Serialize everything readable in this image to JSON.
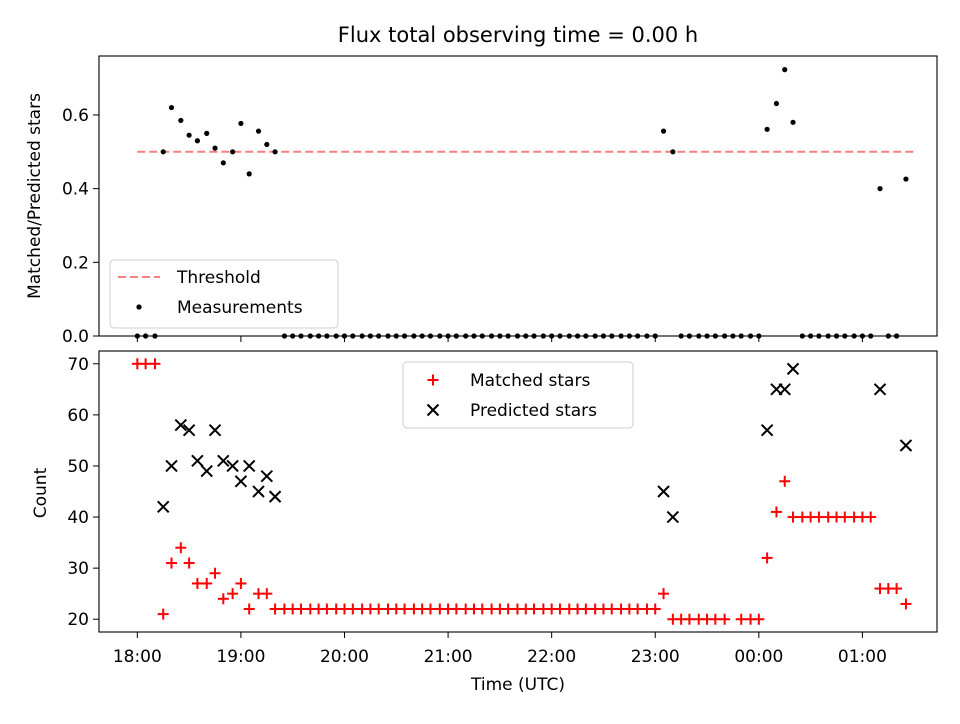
{
  "figure": {
    "title": "Flux total observing time = 0.00 h"
  },
  "chart_data": [
    {
      "type": "scatter",
      "panel": "top",
      "ylabel": "Matched/Predicted stars",
      "ylim": [
        0,
        0.76
      ],
      "yticks": [
        0.0,
        0.2,
        0.4,
        0.6
      ],
      "ytick_labels": [
        "0.0",
        "0.2",
        "0.4",
        "0.6"
      ],
      "threshold": {
        "name": "Threshold",
        "value": 0.5,
        "x_start": 0.0,
        "x_end": 7.5,
        "color": "#f77f7f"
      },
      "legend": {
        "placement": "lower-left",
        "entries": [
          "Threshold",
          "Measurements"
        ]
      },
      "series": [
        {
          "name": "Measurements",
          "color": "#000000",
          "points": [
            [
              0.25,
              0.5
            ],
            [
              0.33,
              0.62
            ],
            [
              0.42,
              0.585
            ],
            [
              0.5,
              0.545
            ],
            [
              0.58,
              0.53
            ],
            [
              0.67,
              0.55
            ],
            [
              0.75,
              0.51
            ],
            [
              0.83,
              0.47
            ],
            [
              0.92,
              0.5
            ],
            [
              1.0,
              0.577
            ],
            [
              1.08,
              0.44
            ],
            [
              1.17,
              0.556
            ],
            [
              1.25,
              0.52
            ],
            [
              1.33,
              0.5
            ],
            [
              5.08,
              0.556
            ],
            [
              5.17,
              0.5
            ],
            [
              6.08,
              0.561
            ],
            [
              6.17,
              0.631
            ],
            [
              6.25,
              0.723
            ],
            [
              6.33,
              0.58
            ],
            [
              7.17,
              0.4
            ],
            [
              7.42,
              0.426
            ],
            [
              0.0,
              0
            ],
            [
              0.08,
              0
            ],
            [
              0.17,
              0
            ],
            [
              1.42,
              0
            ],
            [
              1.5,
              0
            ],
            [
              1.58,
              0
            ],
            [
              1.67,
              0
            ],
            [
              1.75,
              0
            ],
            [
              1.83,
              0
            ],
            [
              1.92,
              0
            ],
            [
              2.0,
              0
            ],
            [
              2.08,
              0
            ],
            [
              2.17,
              0
            ],
            [
              2.25,
              0
            ],
            [
              2.33,
              0
            ],
            [
              2.42,
              0
            ],
            [
              2.5,
              0
            ],
            [
              2.58,
              0
            ],
            [
              2.67,
              0
            ],
            [
              2.75,
              0
            ],
            [
              2.83,
              0
            ],
            [
              2.92,
              0
            ],
            [
              3.0,
              0
            ],
            [
              3.08,
              0
            ],
            [
              3.17,
              0
            ],
            [
              3.25,
              0
            ],
            [
              3.33,
              0
            ],
            [
              3.42,
              0
            ],
            [
              3.5,
              0
            ],
            [
              3.58,
              0
            ],
            [
              3.67,
              0
            ],
            [
              3.75,
              0
            ],
            [
              3.83,
              0
            ],
            [
              3.92,
              0
            ],
            [
              4.0,
              0
            ],
            [
              4.08,
              0
            ],
            [
              4.17,
              0
            ],
            [
              4.25,
              0
            ],
            [
              4.33,
              0
            ],
            [
              4.42,
              0
            ],
            [
              4.5,
              0
            ],
            [
              4.58,
              0
            ],
            [
              4.67,
              0
            ],
            [
              4.75,
              0
            ],
            [
              4.83,
              0
            ],
            [
              4.92,
              0
            ],
            [
              5.0,
              0
            ],
            [
              5.25,
              0
            ],
            [
              5.33,
              0
            ],
            [
              5.42,
              0
            ],
            [
              5.5,
              0
            ],
            [
              5.58,
              0
            ],
            [
              5.67,
              0
            ],
            [
              5.75,
              0
            ],
            [
              5.83,
              0
            ],
            [
              5.92,
              0
            ],
            [
              6.0,
              0
            ],
            [
              6.42,
              0
            ],
            [
              6.5,
              0
            ],
            [
              6.58,
              0
            ],
            [
              6.67,
              0
            ],
            [
              6.75,
              0
            ],
            [
              6.83,
              0
            ],
            [
              6.92,
              0
            ],
            [
              7.0,
              0
            ],
            [
              7.08,
              0
            ],
            [
              7.25,
              0
            ],
            [
              7.33,
              0
            ]
          ]
        }
      ]
    },
    {
      "type": "scatter",
      "panel": "bottom",
      "xlabel": "Time (UTC)",
      "ylabel": "Count",
      "ylim": [
        17.5,
        72.5
      ],
      "yticks": [
        20,
        30,
        40,
        50,
        60,
        70
      ],
      "ytick_labels": [
        "20",
        "30",
        "40",
        "50",
        "60",
        "70"
      ],
      "xlim": [
        -0.37,
        7.72
      ],
      "xticks": [
        0,
        1,
        2,
        3,
        4,
        5,
        6,
        7
      ],
      "xtick_labels": [
        "18:00",
        "19:00",
        "20:00",
        "21:00",
        "22:00",
        "23:00",
        "00:00",
        "01:00"
      ],
      "legend": {
        "placement": "upper-center",
        "entries": [
          "Matched stars",
          "Predicted stars"
        ]
      },
      "series": [
        {
          "name": "Matched stars",
          "marker": "plus",
          "color": "#ff0000",
          "points": [
            [
              0.0,
              70
            ],
            [
              0.08,
              70
            ],
            [
              0.17,
              70
            ],
            [
              0.25,
              21
            ],
            [
              0.33,
              31
            ],
            [
              0.42,
              34
            ],
            [
              0.5,
              31
            ],
            [
              0.58,
              27
            ],
            [
              0.67,
              27
            ],
            [
              0.75,
              29
            ],
            [
              0.83,
              24
            ],
            [
              0.92,
              25
            ],
            [
              1.0,
              27
            ],
            [
              1.08,
              22
            ],
            [
              1.17,
              25
            ],
            [
              1.25,
              25
            ],
            [
              1.33,
              22
            ],
            [
              1.42,
              22
            ],
            [
              1.5,
              22
            ],
            [
              1.58,
              22
            ],
            [
              1.67,
              22
            ],
            [
              1.75,
              22
            ],
            [
              1.83,
              22
            ],
            [
              1.92,
              22
            ],
            [
              2.0,
              22
            ],
            [
              2.08,
              22
            ],
            [
              2.17,
              22
            ],
            [
              2.25,
              22
            ],
            [
              2.33,
              22
            ],
            [
              2.42,
              22
            ],
            [
              2.5,
              22
            ],
            [
              2.58,
              22
            ],
            [
              2.67,
              22
            ],
            [
              2.75,
              22
            ],
            [
              2.83,
              22
            ],
            [
              2.92,
              22
            ],
            [
              3.0,
              22
            ],
            [
              3.08,
              22
            ],
            [
              3.17,
              22
            ],
            [
              3.25,
              22
            ],
            [
              3.33,
              22
            ],
            [
              3.42,
              22
            ],
            [
              3.5,
              22
            ],
            [
              3.58,
              22
            ],
            [
              3.67,
              22
            ],
            [
              3.75,
              22
            ],
            [
              3.83,
              22
            ],
            [
              3.92,
              22
            ],
            [
              4.0,
              22
            ],
            [
              4.08,
              22
            ],
            [
              4.17,
              22
            ],
            [
              4.25,
              22
            ],
            [
              4.33,
              22
            ],
            [
              4.42,
              22
            ],
            [
              4.5,
              22
            ],
            [
              4.58,
              22
            ],
            [
              4.67,
              22
            ],
            [
              4.75,
              22
            ],
            [
              4.83,
              22
            ],
            [
              4.92,
              22
            ],
            [
              5.0,
              22
            ],
            [
              5.08,
              25
            ],
            [
              5.17,
              20
            ],
            [
              5.25,
              20
            ],
            [
              5.33,
              20
            ],
            [
              5.42,
              20
            ],
            [
              5.5,
              20
            ],
            [
              5.58,
              20
            ],
            [
              5.67,
              20
            ],
            [
              5.83,
              20
            ],
            [
              5.92,
              20
            ],
            [
              6.0,
              20
            ],
            [
              6.08,
              32
            ],
            [
              6.17,
              41
            ],
            [
              6.25,
              47
            ],
            [
              6.33,
              40
            ],
            [
              6.42,
              40
            ],
            [
              6.5,
              40
            ],
            [
              6.58,
              40
            ],
            [
              6.67,
              40
            ],
            [
              6.75,
              40
            ],
            [
              6.83,
              40
            ],
            [
              6.92,
              40
            ],
            [
              7.0,
              40
            ],
            [
              7.08,
              40
            ],
            [
              7.17,
              26
            ],
            [
              7.25,
              26
            ],
            [
              7.33,
              26
            ],
            [
              7.42,
              23
            ]
          ]
        },
        {
          "name": "Predicted stars",
          "marker": "x",
          "color": "#000000",
          "points": [
            [
              0.25,
              42
            ],
            [
              0.33,
              50
            ],
            [
              0.42,
              58
            ],
            [
              0.5,
              57
            ],
            [
              0.58,
              51
            ],
            [
              0.67,
              49
            ],
            [
              0.75,
              57
            ],
            [
              0.83,
              51
            ],
            [
              0.92,
              50
            ],
            [
              1.0,
              47
            ],
            [
              1.08,
              50
            ],
            [
              1.17,
              45
            ],
            [
              1.25,
              48
            ],
            [
              1.33,
              44
            ],
            [
              5.08,
              45
            ],
            [
              5.17,
              40
            ],
            [
              6.08,
              57
            ],
            [
              6.17,
              65
            ],
            [
              6.25,
              65
            ],
            [
              6.33,
              69
            ],
            [
              7.17,
              65
            ],
            [
              7.42,
              54
            ]
          ]
        }
      ]
    }
  ]
}
